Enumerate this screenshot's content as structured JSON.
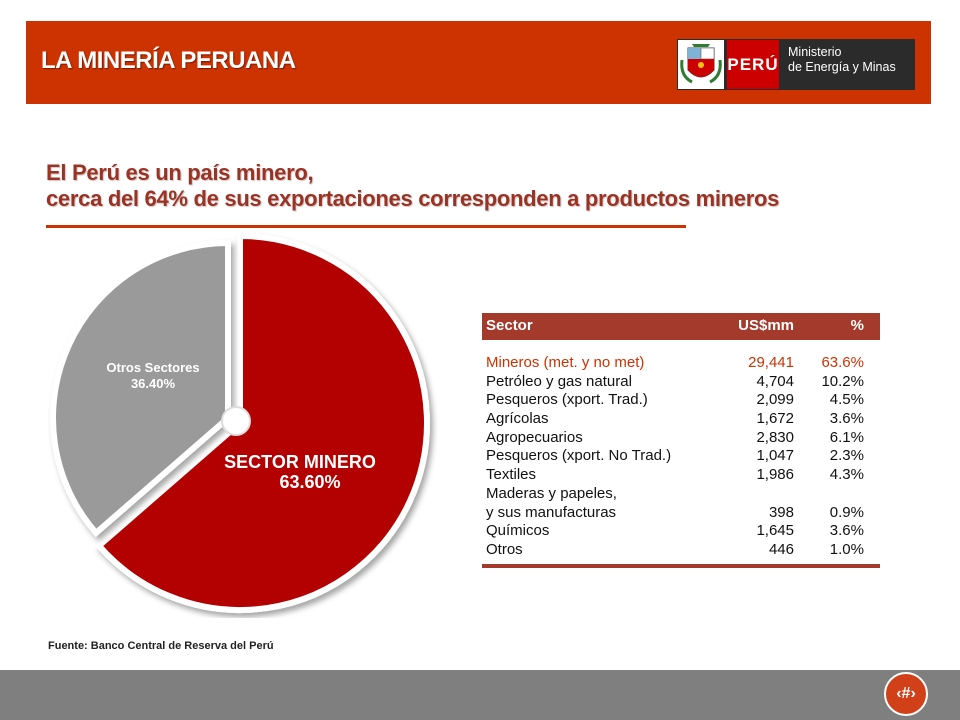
{
  "header": {
    "title": "LA MINERÍA PERUANA",
    "logo": {
      "country": "PERÚ",
      "ministry_line1": "Ministerio",
      "ministry_line2": "de Energía y Minas"
    }
  },
  "subtitle": {
    "line1": "El Perú es un país minero,",
    "line2": "cerca del 64% de sus exportaciones corresponden a productos mineros"
  },
  "chart_data": [
    {
      "type": "pie",
      "title": "",
      "slices": [
        {
          "label": "SECTOR MINERO",
          "value": 63.6,
          "value_label": "63.60%",
          "color": "#b30000"
        },
        {
          "label": "Otros Sectores",
          "value": 36.4,
          "value_label": "36.40%",
          "color": "#9a9a9a"
        }
      ],
      "legend": "none"
    },
    {
      "type": "table",
      "columns": [
        "Sector",
        "US$mm",
        "%"
      ],
      "rows": [
        {
          "sector": "Mineros (met. y no met)",
          "usd": "29,441",
          "pct": "63.6%",
          "highlight": true
        },
        {
          "sector": "Petróleo y gas natural",
          "usd": "4,704",
          "pct": "10.2%"
        },
        {
          "sector": "Pesqueros (xport. Trad.)",
          "usd": "2,099",
          "pct": "4.5%"
        },
        {
          "sector": "Agrícolas",
          "usd": "1,672",
          "pct": "3.6%"
        },
        {
          "sector": "Agropecuarios",
          "usd": "2,830",
          "pct": "6.1%"
        },
        {
          "sector": "Pesqueros (xport. No Trad.)",
          "usd": "1,047",
          "pct": "2.3%"
        },
        {
          "sector": "Textiles",
          "usd": "1,986",
          "pct": "4.3%"
        },
        {
          "sector": "Maderas y papeles,",
          "usd": "",
          "pct": ""
        },
        {
          "sector": "y sus manufacturas",
          "usd": "398",
          "pct": "0.9%"
        },
        {
          "sector": "Químicos",
          "usd": "1,645",
          "pct": "3.6%"
        },
        {
          "sector": "Otros",
          "usd": "446",
          "pct": "1.0%"
        }
      ]
    }
  ],
  "source": "Fuente: Banco Central de Reserva del Perú",
  "page_number": "‹#›",
  "colors": {
    "header": "#cc3300",
    "mining": "#b30000",
    "others": "#9a9a9a",
    "highlight_text": "#cc3300",
    "table_header": "#a33a2b",
    "footer": "#7f7f7f"
  }
}
